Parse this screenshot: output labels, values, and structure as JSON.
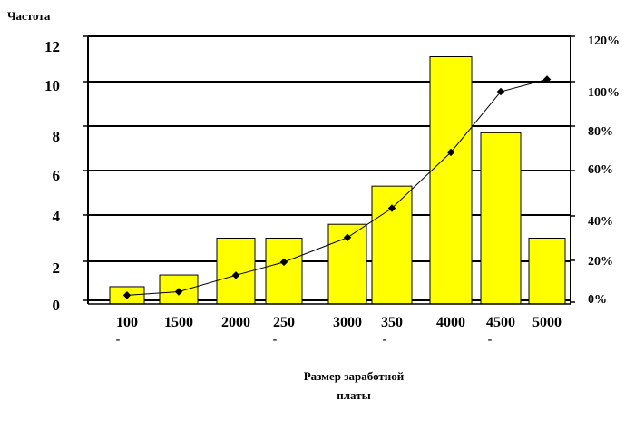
{
  "chart_data": {
    "type": "bar",
    "ylabel": "Частота",
    "xlabel_lines": [
      "Размер заработной",
      "платы"
    ],
    "categories": [
      "100",
      "1500",
      "2000",
      "250",
      "3000",
      "350",
      "4000",
      "4500",
      "5000"
    ],
    "category_marks": [
      "-",
      "",
      "",
      "-",
      "",
      "-",
      "",
      "-",
      ""
    ],
    "y_ticks": [
      "0",
      "2",
      "4",
      "6",
      "8",
      "10",
      "12"
    ],
    "y2_ticks": [
      "0%",
      "20%",
      "40%",
      "60%",
      "80%",
      "100%",
      "120%"
    ],
    "ylim": [
      0,
      12
    ],
    "y2lim": [
      0,
      120
    ],
    "grid": true,
    "bar_color": "#ffff00",
    "series": [
      {
        "type": "bar",
        "values": [
          0.7,
          1.3,
          3.0,
          3.0,
          3.6,
          5.3,
          11.1,
          7.7,
          3.0
        ]
      },
      {
        "type": "line",
        "values": [
          3.3,
          5.0,
          12.9,
          19.2,
          30.3,
          43.4,
          68.2,
          95.5,
          101.0
        ]
      }
    ]
  }
}
